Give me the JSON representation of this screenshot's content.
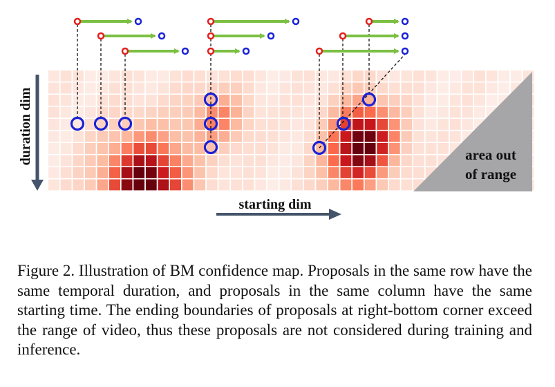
{
  "figure": {
    "axis_y_label": "duration dim",
    "axis_x_label": "starting dim",
    "out_of_range_label_line1": "area out",
    "out_of_range_label_line2": "of range",
    "colors": {
      "start_point": "#e0201b",
      "end_point": "#1a22d6",
      "arrow": "#7cc043",
      "marker_ring": "#1a22d6",
      "axis_arrow": "#44546a",
      "out_of_range_fill": "#a6a6a8",
      "grid_low": "#fde9e5",
      "grid_high": "#67000d"
    }
  },
  "caption": {
    "text": "Figure 2. Illustration of BM confidence map.  Proposals in the same row have the same temporal duration, and proposals in the same column have the same starting time. The ending boundaries of proposals at right-bottom corner exceed the range of video, thus these proposals are not considered during training and inference."
  }
}
